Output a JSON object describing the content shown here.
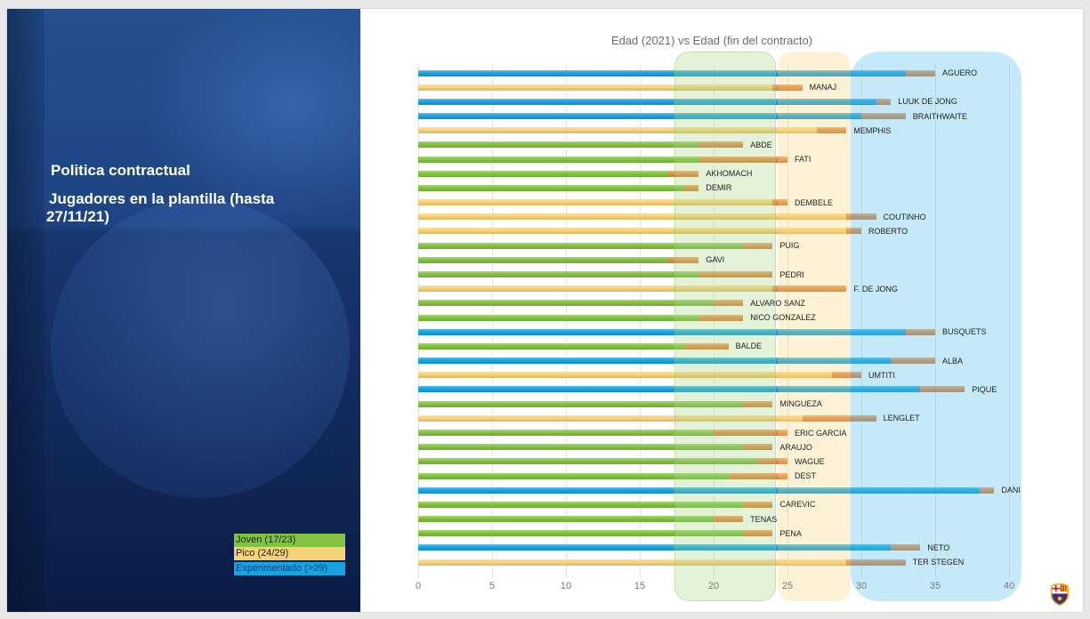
{
  "slide": {
    "heading": "Politica contractual",
    "subheading": "Jugadores en la plantilla (hasta 27/11/21)"
  },
  "legend": {
    "items": [
      {
        "label": "Joven (17/23)",
        "color": "#82c341",
        "text_color": "#1f1f1f"
      },
      {
        "label": "Pico (24/29)",
        "color": "#f8d276",
        "text_color": "#1f1f1f"
      },
      {
        "label": "Experimentado (>29)",
        "color": "#17a3e0",
        "text_color": "#1b3c78"
      }
    ]
  },
  "colors": {
    "contract_segment": "#e58b45"
  },
  "chart_data": {
    "type": "bar",
    "orientation": "horizontal",
    "stacked": true,
    "title": "Edad (2021) vs Edad (fin del contracto)",
    "xlim": [
      0,
      40
    ],
    "xticks": [
      0,
      5,
      10,
      15,
      20,
      25,
      30,
      35,
      40
    ],
    "grid": true,
    "legend_placement": "bottom-left",
    "categories": [
      "AGUERO",
      "MANAJ",
      "LUUK DE JONG",
      "BRAITHWAITE",
      "MEMPHIS",
      "ABDE",
      "FATI",
      "AKHOMACH",
      "DEMIR",
      "DEMBELE",
      "COUTINHO",
      "ROBERTO",
      "PUIG",
      "GAVI",
      "PEDRI",
      "F. DE JONG",
      "ALVARO SANZ",
      "NICO GONZALEZ",
      "BUSQUETS",
      "BALDE",
      "ALBA",
      "UMTITI",
      "PIQUE",
      "MINGUEZA",
      "LENGLET",
      "ERIC GARCIA",
      "ARAUJO",
      "WAGUE",
      "DEST",
      "DANI",
      "CAREVIC",
      "TENAS",
      "PENA",
      "NETO",
      "TER STEGEN"
    ],
    "group_index": [
      2,
      1,
      2,
      2,
      1,
      0,
      0,
      0,
      0,
      1,
      1,
      1,
      0,
      0,
      0,
      1,
      0,
      0,
      2,
      0,
      2,
      1,
      2,
      0,
      1,
      0,
      0,
      0,
      0,
      2,
      0,
      0,
      0,
      2,
      1
    ],
    "age_2021": [
      33,
      24,
      31,
      30,
      27,
      19,
      19,
      17,
      18,
      24,
      29,
      29,
      22,
      17,
      19,
      24,
      20,
      19,
      33,
      18,
      32,
      28,
      34,
      22,
      26,
      20,
      22,
      23,
      21,
      38,
      22,
      20,
      22,
      32,
      29
    ],
    "age_contract_end": [
      35,
      26,
      32,
      33,
      29,
      22,
      25,
      19,
      19,
      25,
      31,
      30,
      24,
      19,
      24,
      29,
      22,
      22,
      35,
      21,
      35,
      30,
      37,
      24,
      31,
      25,
      24,
      25,
      25,
      39,
      24,
      22,
      24,
      34,
      33
    ]
  }
}
